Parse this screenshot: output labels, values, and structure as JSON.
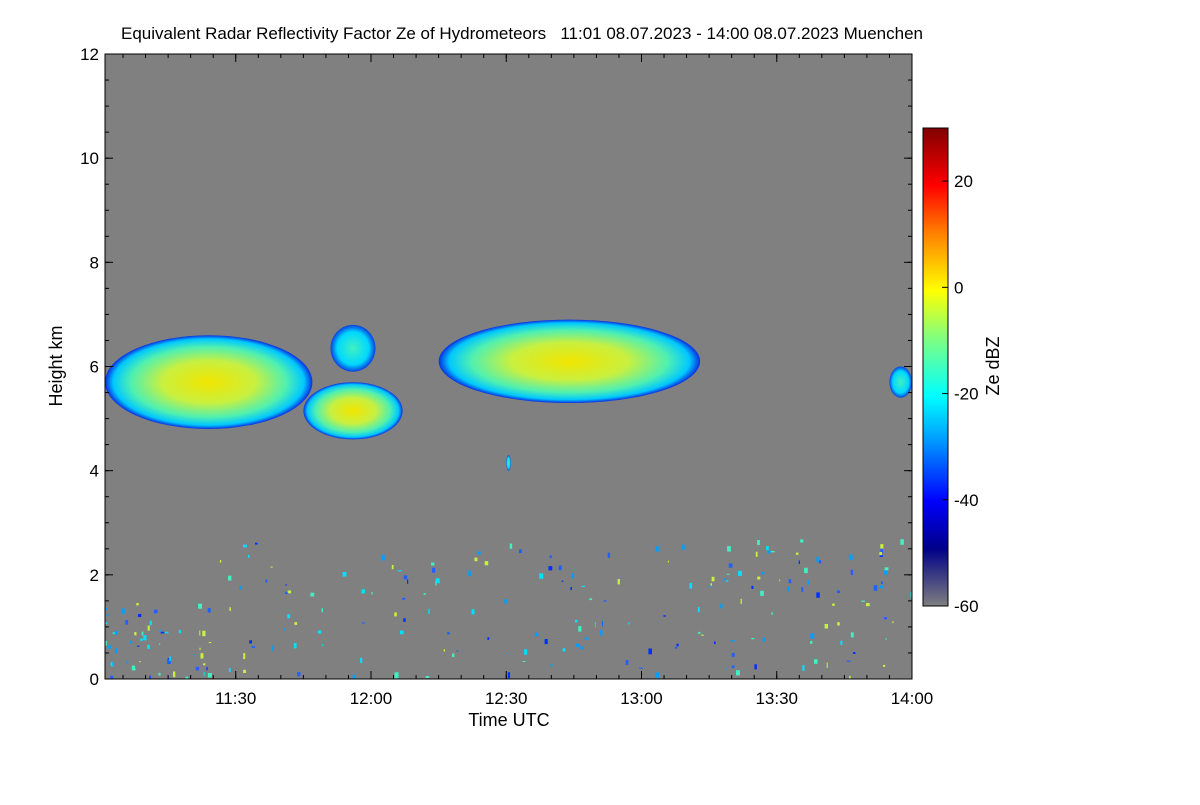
{
  "chart_data": {
    "type": "heatmap",
    "title": "Equivalent Radar Reflectivity Factor Ze of Hydrometeors   11:01 08.07.2023 - 14:00 08.07.2023 Muenchen",
    "xlabel": "Time UTC",
    "ylabel": "Height km",
    "x_range": [
      "11:01",
      "14:00"
    ],
    "x_ticks": [
      "11:30",
      "12:00",
      "12:30",
      "13:00",
      "13:30",
      "14:00"
    ],
    "ylim": [
      0,
      12
    ],
    "y_ticks": [
      "0",
      "2",
      "4",
      "6",
      "8",
      "10",
      "12"
    ],
    "background_color": "#808080",
    "colorbar": {
      "label": "Ze dBZ",
      "range": [
        -60,
        30
      ],
      "ticks": [
        "20",
        "0",
        "-20",
        "-40",
        "-60"
      ]
    },
    "echo_regions": [
      {
        "time_start": "11:01",
        "time_end": "11:47",
        "height_bottom_km": 4.8,
        "height_top_km": 6.6,
        "max_dBZ": -5
      },
      {
        "time_start": "11:45",
        "time_end": "12:07",
        "height_bottom_km": 4.6,
        "height_top_km": 5.7,
        "max_dBZ": -3
      },
      {
        "time_start": "11:51",
        "time_end": "12:01",
        "height_bottom_km": 5.9,
        "height_top_km": 6.8,
        "max_dBZ": -20
      },
      {
        "time_start": "12:15",
        "time_end": "13:13",
        "height_bottom_km": 5.3,
        "height_top_km": 6.9,
        "max_dBZ": 2
      },
      {
        "time_start": "12:30",
        "time_end": "12:31",
        "height_bottom_km": 4.0,
        "height_top_km": 4.3,
        "max_dBZ": -30
      },
      {
        "time_start": "13:55",
        "time_end": "14:00",
        "height_bottom_km": 5.4,
        "height_top_km": 6.0,
        "max_dBZ": -20
      },
      {
        "time_start": "11:01",
        "time_end": "14:00",
        "height_bottom_km": 0.0,
        "height_top_km": 2.7,
        "max_dBZ": -10
      }
    ]
  }
}
